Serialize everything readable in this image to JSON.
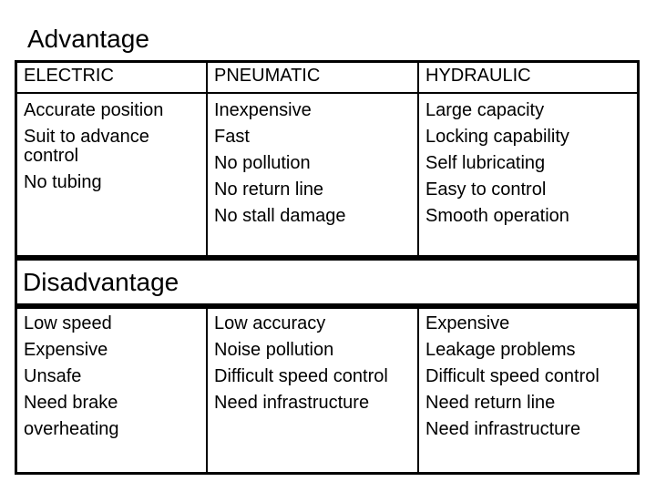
{
  "slide": {
    "advantage_title": "Advantage",
    "disadvantage_title": "Disadvantage",
    "columns": [
      "ELECTRIC",
      "PNEUMATIC",
      "HYDRAULIC"
    ],
    "advantages": {
      "electric": [
        "Accurate position",
        "Suit to advance control",
        "No tubing"
      ],
      "pneumatic": [
        "Inexpensive",
        "Fast",
        "No pollution",
        "No return line",
        "No stall damage"
      ],
      "hydraulic": [
        "Large capacity",
        "Locking capability",
        "Self lubricating",
        "Easy to control",
        "Smooth operation"
      ]
    },
    "disadvantages": {
      "electric": [
        "Low speed",
        "Expensive",
        "Unsafe",
        "Need brake",
        "overheating"
      ],
      "pneumatic": [
        "Low accuracy",
        "Noise pollution",
        "Difficult speed control",
        "Need infrastructure"
      ],
      "hydraulic": [
        "Expensive",
        "Leakage problems",
        "Difficult speed control",
        "Need return line",
        "Need infrastructure"
      ]
    },
    "colors": {
      "background": "#ffffff",
      "text": "#000000",
      "border": "#000000"
    }
  }
}
